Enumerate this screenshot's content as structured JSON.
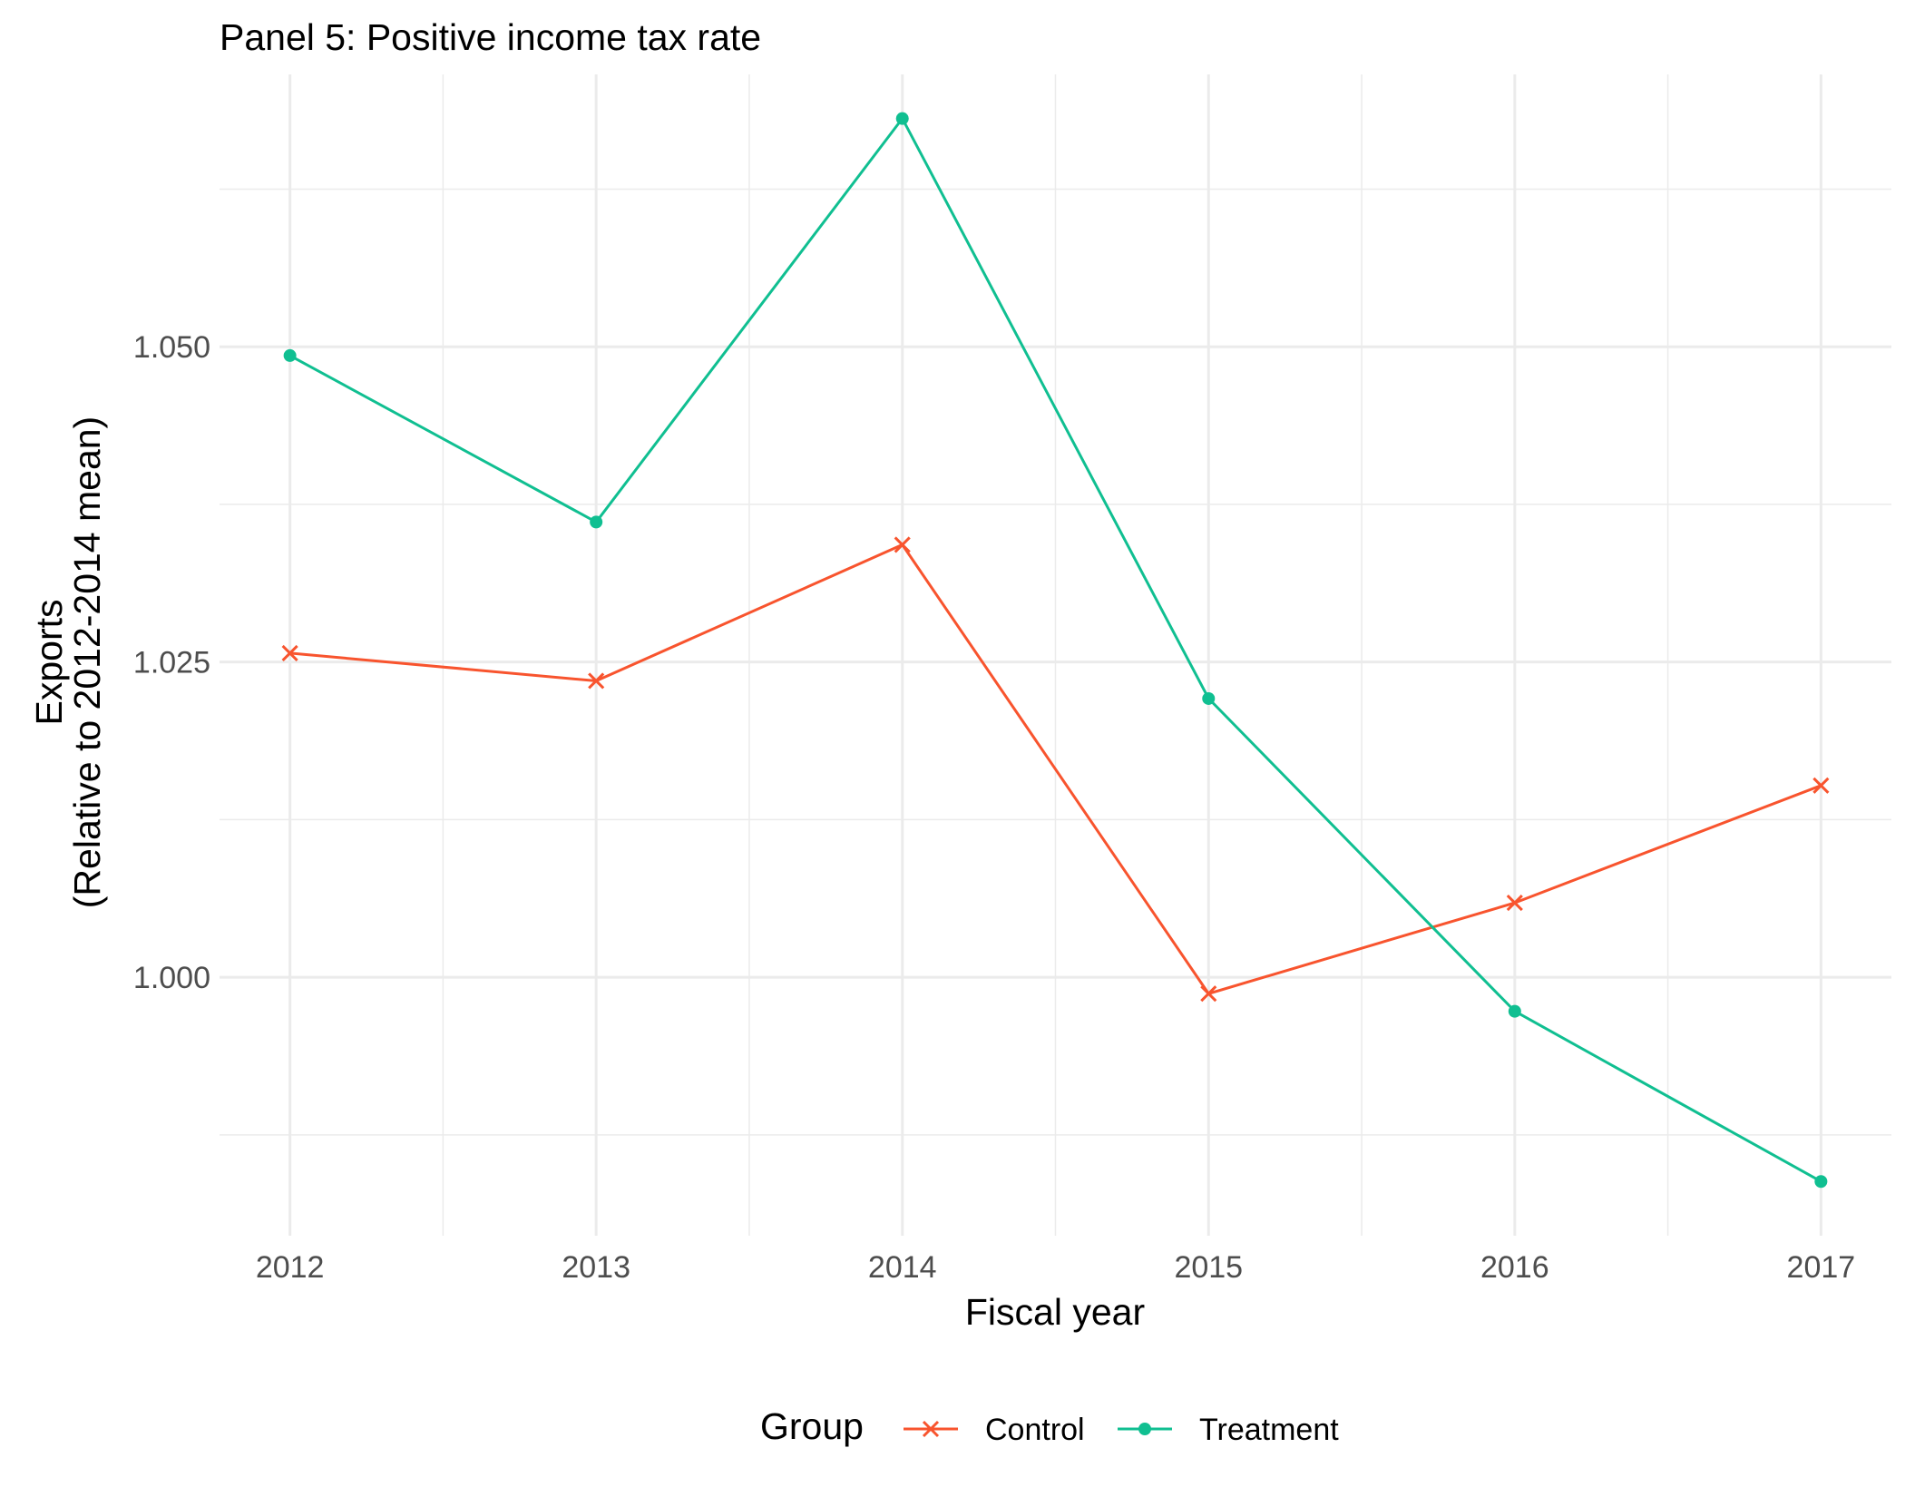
{
  "chart_data": {
    "type": "line",
    "title": "Panel 5: Positive income tax rate",
    "xlabel": "Fiscal year",
    "ylabel_lines": [
      "Exports",
      "(Relative to 2012-2014 mean)"
    ],
    "x": [
      2012,
      2013,
      2014,
      2015,
      2016,
      2017
    ],
    "x_tick_labels": [
      "2012",
      "2013",
      "2014",
      "2015",
      "2016",
      "2017"
    ],
    "xlim": [
      2011.77,
      2017.23
    ],
    "y_ticks": [
      1.0,
      1.025,
      1.05
    ],
    "y_tick_labels": [
      "1.000",
      "1.025",
      "1.050"
    ],
    "ylim": [
      0.9795,
      1.0716
    ],
    "grid": true,
    "legend": {
      "title": "Group",
      "position": "bottom"
    },
    "series": [
      {
        "name": "Control",
        "color": "#f8542e",
        "marker": "cross",
        "values": [
          1.0257,
          1.0235,
          1.0343,
          0.9987,
          1.0059,
          1.0152
        ]
      },
      {
        "name": "Treatment",
        "color": "#10bf91",
        "marker": "circle",
        "values": [
          1.0493,
          1.0361,
          1.0681,
          1.0221,
          0.9973,
          0.9838
        ]
      }
    ]
  }
}
